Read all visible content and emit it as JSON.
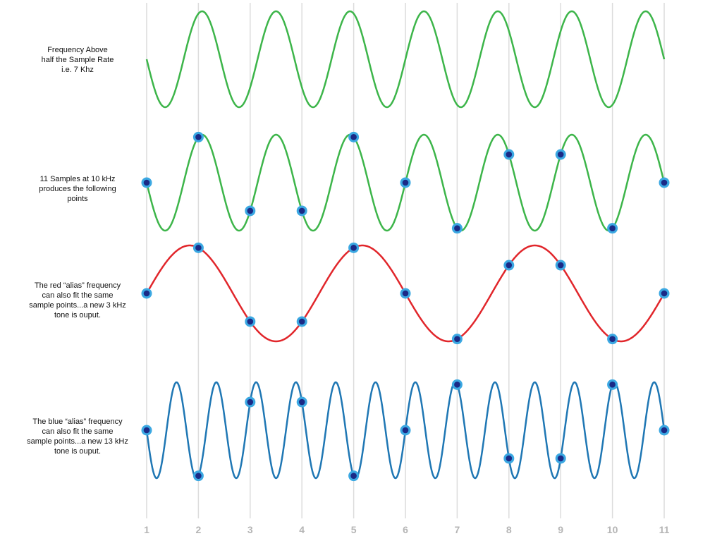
{
  "rows": [
    {
      "label": [
        "Frequency  Above",
        "half the Sample Rate",
        "i.e. 7 Khz"
      ]
    },
    {
      "label": [
        "11 Samples at 10 kHz",
        "produces the following",
        "points"
      ]
    },
    {
      "label": [
        "The red “alias” frequency",
        "can also fit the same",
        "sample points...a new 3 kHz",
        "tone is ouput."
      ]
    },
    {
      "label": [
        "The blue “alias” frequency",
        "can also fit the same",
        "sample points...a new 13 kHz",
        "tone is ouput."
      ]
    }
  ],
  "sample_labels": [
    "1",
    "2",
    "3",
    "4",
    "5",
    "6",
    "7",
    "8",
    "9",
    "10",
    "11"
  ]
}
